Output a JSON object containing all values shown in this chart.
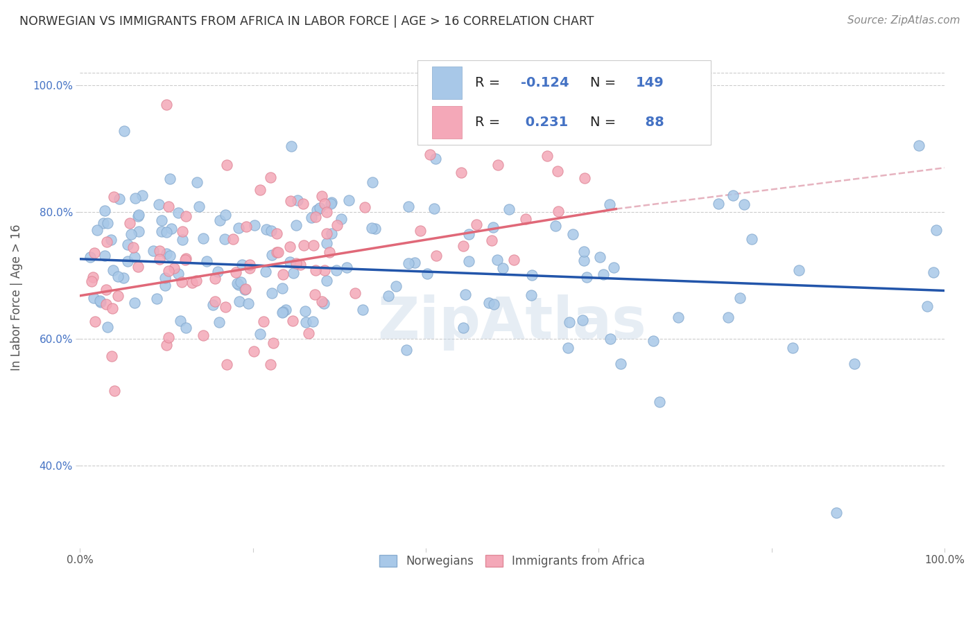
{
  "title": "NORWEGIAN VS IMMIGRANTS FROM AFRICA IN LABOR FORCE | AGE > 16 CORRELATION CHART",
  "source": "Source: ZipAtlas.com",
  "ylabel": "In Labor Force | Age > 16",
  "xlim": [
    0.0,
    1.0
  ],
  "ylim": [
    0.27,
    1.06
  ],
  "y_ticks": [
    0.4,
    0.6,
    0.8,
    1.0
  ],
  "y_tick_labels": [
    "40.0%",
    "60.0%",
    "80.0%",
    "100.0%"
  ],
  "tick_color": "#4472c4",
  "norwegian_color": "#a8c8e8",
  "african_color": "#f4a8b8",
  "norwegian_edge_color": "#88acd0",
  "african_edge_color": "#e08898",
  "norwegian_line_color": "#2255aa",
  "african_line_color": "#e06878",
  "dashed_line_color": "#e0a0b0",
  "grid_color": "#cccccc",
  "R_norwegian": -0.124,
  "N_norwegian": 149,
  "R_african": 0.231,
  "N_african": 88,
  "legend_R_color": "#4472c4",
  "legend_N_color": "#4472c4",
  "nor_line_start_x": 0.0,
  "nor_line_end_x": 1.0,
  "nor_line_start_y": 0.726,
  "nor_line_end_y": 0.676,
  "afr_line_start_x": 0.0,
  "afr_line_end_x": 0.62,
  "afr_line_start_y": 0.668,
  "afr_line_end_y": 0.805,
  "dash_line_start_x": 0.62,
  "dash_line_end_x": 1.0,
  "dash_line_start_y": 0.805,
  "dash_line_end_y": 0.87
}
